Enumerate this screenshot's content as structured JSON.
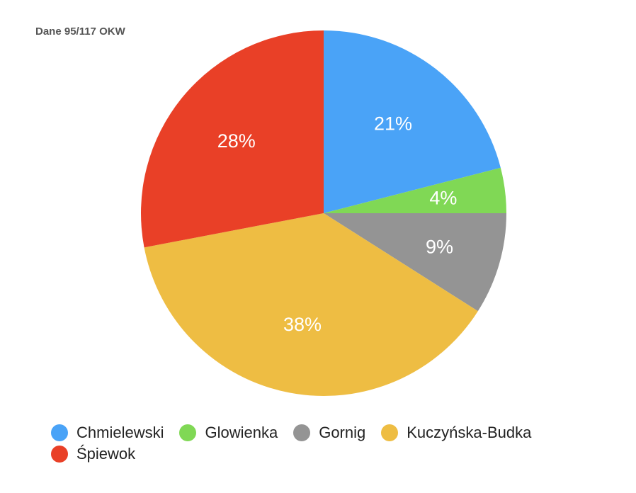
{
  "chart_data": {
    "type": "pie",
    "title": "Dane 95/117 OKW",
    "start_angle_deg": 0,
    "direction": "clockwise",
    "legend_position": "bottom-left",
    "slices": [
      {
        "label": "Chmielewski",
        "value": 21,
        "display": "21%",
        "color": "#4aa3f7"
      },
      {
        "label": "Glowienka",
        "value": 4,
        "display": "4%",
        "color": "#80d855"
      },
      {
        "label": "Gornig",
        "value": 9,
        "display": "9%",
        "color": "#949494"
      },
      {
        "label": "Kuczyńska-Budka",
        "value": 38,
        "display": "38%",
        "color": "#eebd43"
      },
      {
        "label": "Śpiewok",
        "value": 28,
        "display": "28%",
        "color": "#e94027"
      }
    ]
  }
}
